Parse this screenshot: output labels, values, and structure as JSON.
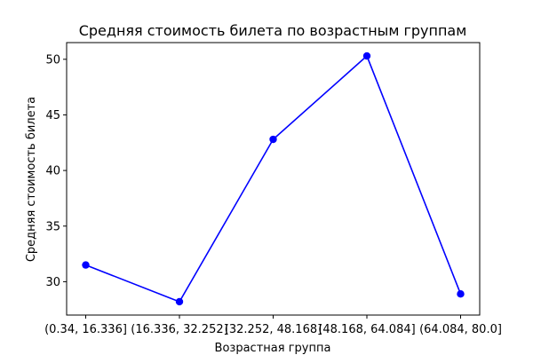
{
  "chart_data": {
    "type": "line",
    "title": "Средняя стоимость билета по возрастным группам",
    "xlabel": "Возрастная группа",
    "ylabel": "Средняя стоимость билета",
    "categories": [
      "(0.34, 16.336]",
      "(16.336, 32.252]",
      "(32.252, 48.168]",
      "(48.168, 64.084]",
      "(64.084, 80.0]"
    ],
    "series": [
      {
        "values": [
          31.5,
          28.2,
          42.8,
          50.3,
          28.9
        ],
        "color": "#0000ff",
        "marker": "circle"
      }
    ],
    "ylim": [
      27.0,
      51.5
    ],
    "yticks": [
      30,
      35,
      40,
      45,
      50
    ],
    "grid": false,
    "legend": "none"
  }
}
